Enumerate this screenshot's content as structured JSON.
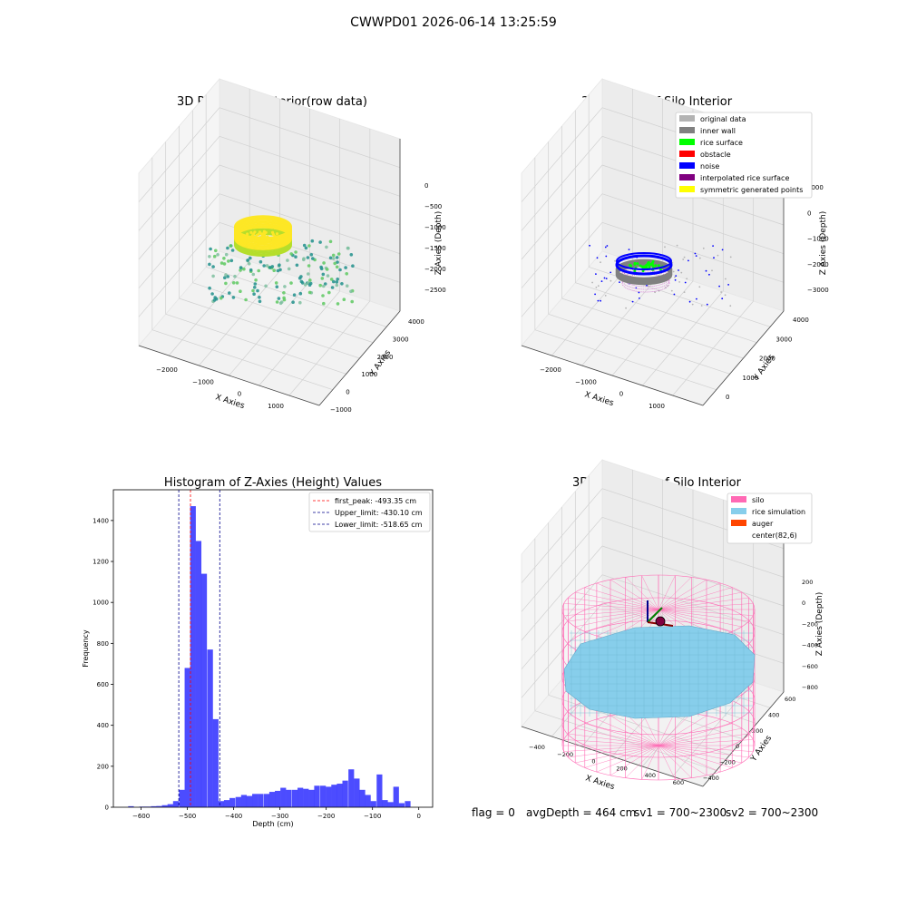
{
  "figure": {
    "suptitle": "CWWPD01 2026-06-14 13:25:59",
    "footer": {
      "flag": "flag = 0",
      "avg_depth": "avgDepth = 464 cm",
      "sv1": "sv1 = 700~2300",
      "sv2": "sv2 = 700~2300"
    }
  },
  "chart_data": [
    {
      "type": "scatter",
      "title": "3D Plot of Silo Interior(row data)",
      "xlabel": "X Axies",
      "ylabel": "Y Axies",
      "zlabel": "Z Axies (Depth)",
      "x_ticks": [
        "−2000",
        "−1000",
        "0",
        "1000"
      ],
      "y_ticks": [
        "−1000",
        "0",
        "1000",
        "2000",
        "3000",
        "4000"
      ],
      "z_ticks": [
        "0",
        "−500",
        "−1000",
        "−1500",
        "−2000",
        "−2500"
      ],
      "colormap": [
        "#440154",
        "#21918c",
        "#5ec962",
        "#fde725"
      ]
    },
    {
      "type": "scatter",
      "title": "3D classify of Silo Interior",
      "xlabel": "X Axies",
      "ylabel": "Y Axies",
      "zlabel": "Z Axies (Depth)",
      "x_ticks": [
        "−2000",
        "−1000",
        "0",
        "1000"
      ],
      "y_ticks": [
        "0",
        "1000",
        "2000",
        "3000",
        "4000"
      ],
      "z_ticks": [
        "1000",
        "0",
        "−1000",
        "−2000",
        "−3000"
      ],
      "legend_position": "top-right",
      "legend": [
        {
          "label": "original data",
          "color": "#b3b3b3"
        },
        {
          "label": "inner wall",
          "color": "#808080"
        },
        {
          "label": "rice surface",
          "color": "#00ff00"
        },
        {
          "label": "obstacle",
          "color": "#ff0000"
        },
        {
          "label": "noise",
          "color": "#0000ff"
        },
        {
          "label": "interpolated rice surface",
          "color": "#800080"
        },
        {
          "label": "symmetric generated points",
          "color": "#ffff00"
        }
      ]
    },
    {
      "type": "bar",
      "title": "Histogram of Z-Axies (Height) Values",
      "xlabel": "Depth (cm)",
      "ylabel": "Frequency",
      "xlim": [
        -660,
        30
      ],
      "ylim": [
        0,
        1550
      ],
      "x_ticks": [
        {
          "value": -600,
          "label": "−600"
        },
        {
          "value": -500,
          "label": "−500"
        },
        {
          "value": -400,
          "label": "−400"
        },
        {
          "value": -300,
          "label": "−300"
        },
        {
          "value": -200,
          "label": "−200"
        },
        {
          "value": -100,
          "label": "−100"
        },
        {
          "value": 0,
          "label": "0"
        }
      ],
      "y_ticks": [
        {
          "value": 0,
          "label": "0"
        },
        {
          "value": 200,
          "label": "200"
        },
        {
          "value": 400,
          "label": "400"
        },
        {
          "value": 600,
          "label": "600"
        },
        {
          "value": 800,
          "label": "800"
        },
        {
          "value": 1000,
          "label": "1000"
        },
        {
          "value": 1200,
          "label": "1200"
        },
        {
          "value": 1400,
          "label": "1400"
        }
      ],
      "bar_color": "#0000ff",
      "bin_width": 12.2,
      "bins": [
        {
          "left": -628,
          "count": 5
        },
        {
          "left": -616,
          "count": 0
        },
        {
          "left": -604,
          "count": 3
        },
        {
          "left": -592,
          "count": 3
        },
        {
          "left": -579,
          "count": 5
        },
        {
          "left": -567,
          "count": 6
        },
        {
          "left": -555,
          "count": 10
        },
        {
          "left": -543,
          "count": 15
        },
        {
          "left": -531,
          "count": 30
        },
        {
          "left": -518,
          "count": 85
        },
        {
          "left": -506,
          "count": 680
        },
        {
          "left": -494,
          "count": 1470
        },
        {
          "left": -482,
          "count": 1300
        },
        {
          "left": -470,
          "count": 1140
        },
        {
          "left": -457,
          "count": 770
        },
        {
          "left": -445,
          "count": 430
        },
        {
          "left": -433,
          "count": 30
        },
        {
          "left": -421,
          "count": 35
        },
        {
          "left": -409,
          "count": 45
        },
        {
          "left": -396,
          "count": 50
        },
        {
          "left": -384,
          "count": 60
        },
        {
          "left": -372,
          "count": 55
        },
        {
          "left": -360,
          "count": 65
        },
        {
          "left": -348,
          "count": 65
        },
        {
          "left": -335,
          "count": 65
        },
        {
          "left": -323,
          "count": 75
        },
        {
          "left": -311,
          "count": 80
        },
        {
          "left": -299,
          "count": 95
        },
        {
          "left": -287,
          "count": 85
        },
        {
          "left": -274,
          "count": 85
        },
        {
          "left": -262,
          "count": 95
        },
        {
          "left": -250,
          "count": 90
        },
        {
          "left": -238,
          "count": 85
        },
        {
          "left": -226,
          "count": 105
        },
        {
          "left": -213,
          "count": 105
        },
        {
          "left": -201,
          "count": 100
        },
        {
          "left": -189,
          "count": 110
        },
        {
          "left": -177,
          "count": 115
        },
        {
          "left": -165,
          "count": 130
        },
        {
          "left": -152,
          "count": 185
        },
        {
          "left": -140,
          "count": 140
        },
        {
          "left": -128,
          "count": 85
        },
        {
          "left": -116,
          "count": 60
        },
        {
          "left": -104,
          "count": 30
        },
        {
          "left": -91,
          "count": 160
        },
        {
          "left": -79,
          "count": 35
        },
        {
          "left": -67,
          "count": 25
        },
        {
          "left": -55,
          "count": 100
        },
        {
          "left": -43,
          "count": 20
        },
        {
          "left": -30,
          "count": 30
        }
      ],
      "vlines": [
        {
          "label": "first_peak: -493.35 cm",
          "value": -493.35,
          "color": "#ff0000"
        },
        {
          "label": "Upper_limit: -430.10 cm",
          "value": -430.1,
          "color": "#00008b"
        },
        {
          "label": "Lower_limit: -518.65 cm",
          "value": -518.65,
          "color": "#00008b"
        }
      ],
      "legend_position": "top-right"
    },
    {
      "type": "scatter",
      "title": "3D simulation of Silo Interior",
      "xlabel": "X Axies",
      "ylabel": "Y Axies",
      "zlabel": "Z Axies (Depth)",
      "x_ticks": [
        "−400",
        "−200",
        "0",
        "200",
        "400",
        "600"
      ],
      "y_ticks": [
        "−400",
        "−200",
        "0",
        "200",
        "400",
        "600"
      ],
      "z_ticks": [
        "200",
        "0",
        "−200",
        "−400",
        "−600",
        "−800"
      ],
      "legend_position": "top-right",
      "legend": [
        {
          "label": "silo",
          "color": "#ff69b4"
        },
        {
          "label": "rice simulation",
          "color": "#87ceeb"
        },
        {
          "label": "auger",
          "color": "#ff4500"
        },
        {
          "label": "center(82,6)",
          "color": ""
        }
      ]
    }
  ]
}
